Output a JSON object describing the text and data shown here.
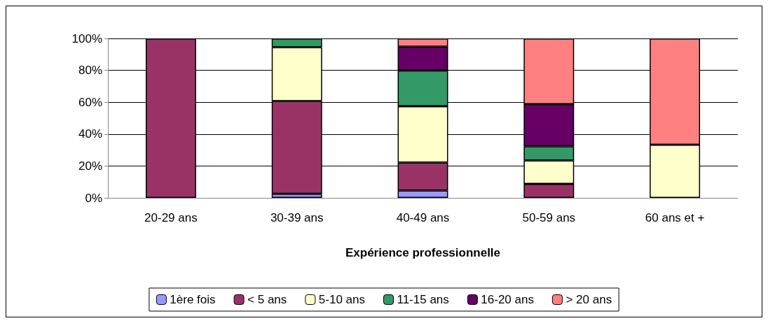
{
  "chart_data": {
    "type": "bar",
    "stacked": true,
    "xlabel": "Expérience professionnelle",
    "categories": [
      "20-29 ans",
      "30-39 ans",
      "40-49 ans",
      "50-59 ans",
      "60 ans et +"
    ],
    "series": [
      {
        "name": "1ère fois",
        "color": "#9999ff",
        "values": [
          null,
          2.5,
          4.6,
          null,
          null
        ]
      },
      {
        "name": "< 5 ans",
        "color": "#993366",
        "values": [
          100,
          58.2,
          17.6,
          8.8,
          null
        ]
      },
      {
        "name": "5-10 ans",
        "color": "#ffffcc",
        "values": [
          null,
          33.8,
          35.3,
          14.7,
          33.3
        ]
      },
      {
        "name": "11-15 ans",
        "color": "#339966",
        "values": [
          null,
          5.5,
          22.4,
          8.8,
          null
        ]
      },
      {
        "name": "16-20 ans",
        "color": "#660066",
        "values": [
          null,
          null,
          14.9,
          26.5,
          null
        ]
      },
      {
        "name": "> 20 ans",
        "color": "#ff8080",
        "values": [
          null,
          null,
          5.2,
          41.2,
          66.7
        ]
      }
    ],
    "ylim": [
      0,
      100
    ],
    "yticks": [
      {
        "value": 0,
        "label": "0%"
      },
      {
        "value": 20,
        "label": "20%"
      },
      {
        "value": 40,
        "label": "40%"
      },
      {
        "value": 60,
        "label": "60%"
      },
      {
        "value": 80,
        "label": "80%"
      },
      {
        "value": 100,
        "label": "100%"
      }
    ],
    "grid": "y",
    "legend": "bottom"
  }
}
